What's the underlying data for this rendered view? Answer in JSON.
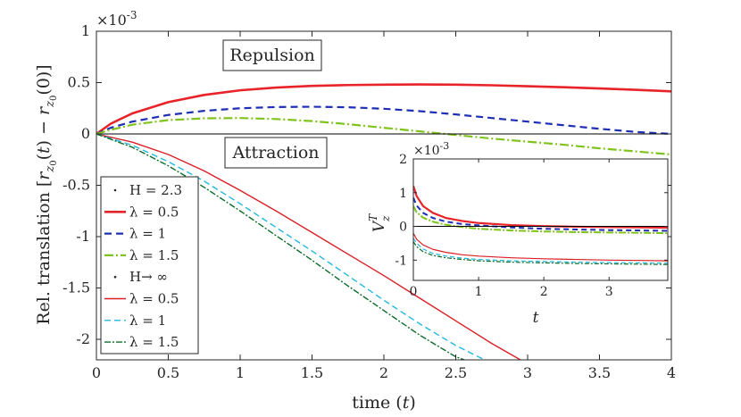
{
  "chart_data": [
    {
      "type": "line",
      "title": "",
      "xlabel": "time (t)",
      "ylabel": "Rel. translation [r_z0(t) − r_z0(0)]",
      "exponent_label": "×10^-3",
      "xlim": [
        0,
        4
      ],
      "ylim": [
        -2.2,
        1
      ],
      "xticks": [
        0,
        0.5,
        1,
        1.5,
        2,
        2.5,
        3,
        3.5,
        4
      ],
      "xtick_labels": [
        "0",
        "0.5",
        "1",
        "1.5",
        "2",
        "2.5",
        "3",
        "3.5",
        "4"
      ],
      "yticks": [
        1,
        0.5,
        0,
        -0.5,
        -1,
        -1.5,
        -2
      ],
      "ytick_labels": [
        "1",
        "0.5",
        "0",
        "-0.5",
        "-1",
        "-1.5",
        "-2"
      ],
      "annotations": [
        "Repulsion",
        "Attraction"
      ],
      "legend_location": "lower-left",
      "legend": [
        {
          "label": "H = 2.3",
          "style": "header"
        },
        {
          "label": "λ = 0.5",
          "series": 0
        },
        {
          "label": "λ = 1",
          "series": 1
        },
        {
          "label": "λ = 1.5",
          "series": 2
        },
        {
          "label": "H→ ∞",
          "style": "header"
        },
        {
          "label": "λ = 0.5",
          "series": 3
        },
        {
          "label": "λ = 1",
          "series": 4
        },
        {
          "label": "λ = 1.5",
          "series": 5
        }
      ],
      "series": [
        {
          "name": "H = 2.3, λ = 0.5",
          "color": "#e8242a",
          "dash": "",
          "width": 2.6,
          "x": [
            0,
            0.1,
            0.25,
            0.5,
            0.75,
            1,
            1.25,
            1.5,
            1.75,
            2,
            2.25,
            2.5,
            2.75,
            3,
            3.25,
            3.5,
            3.75,
            4
          ],
          "y": [
            0,
            0.1,
            0.2,
            0.31,
            0.38,
            0.425,
            0.452,
            0.468,
            0.476,
            0.48,
            0.482,
            0.48,
            0.474,
            0.465,
            0.455,
            0.443,
            0.43,
            0.415
          ]
        },
        {
          "name": "H = 2.3, λ = 1",
          "color": "#1f2fb5",
          "dash": "8,5",
          "width": 2.2,
          "x": [
            0,
            0.1,
            0.25,
            0.5,
            0.75,
            1,
            1.25,
            1.5,
            1.75,
            2,
            2.25,
            2.5,
            2.75,
            3,
            3.25,
            3.5,
            3.75,
            4
          ],
          "y": [
            0,
            0.06,
            0.12,
            0.185,
            0.225,
            0.25,
            0.262,
            0.265,
            0.26,
            0.245,
            0.222,
            0.19,
            0.155,
            0.12,
            0.085,
            0.05,
            0.02,
            0.0
          ]
        },
        {
          "name": "H = 2.3, λ = 1.5",
          "color": "#7fc31c",
          "dash": "10,3,2,3",
          "width": 2.2,
          "x": [
            0,
            0.1,
            0.25,
            0.5,
            0.75,
            1,
            1.25,
            1.5,
            1.75,
            2,
            2.25,
            2.5,
            2.75,
            3,
            3.25,
            3.5,
            3.75,
            4
          ],
          "y": [
            0,
            0.04,
            0.09,
            0.135,
            0.152,
            0.155,
            0.145,
            0.125,
            0.095,
            0.06,
            0.025,
            -0.01,
            -0.045,
            -0.075,
            -0.105,
            -0.14,
            -0.17,
            -0.2
          ]
        },
        {
          "name": "H→ ∞, λ = 0.5",
          "color": "#d91f26",
          "dash": "",
          "width": 1.4,
          "x": [
            0,
            0.25,
            0.5,
            0.75,
            1,
            1.25,
            1.5,
            1.75,
            2,
            2.25,
            2.5,
            2.75,
            2.95
          ],
          "y": [
            0,
            -0.08,
            -0.2,
            -0.36,
            -0.55,
            -0.75,
            -0.96,
            -1.17,
            -1.38,
            -1.6,
            -1.82,
            -2.04,
            -2.2
          ]
        },
        {
          "name": "H→ ∞, λ = 1",
          "color": "#22b8e0",
          "dash": "7,4",
          "width": 1.4,
          "x": [
            0,
            0.25,
            0.5,
            0.75,
            1,
            1.25,
            1.5,
            1.75,
            2,
            2.25,
            2.5,
            2.7
          ],
          "y": [
            0,
            -0.11,
            -0.27,
            -0.46,
            -0.68,
            -0.91,
            -1.14,
            -1.38,
            -1.62,
            -1.85,
            -2.06,
            -2.2
          ]
        },
        {
          "name": "H→ ∞, λ = 1.5",
          "color": "#0d6b2a",
          "dash": "7,2,2,2",
          "width": 1.4,
          "x": [
            0,
            0.25,
            0.5,
            0.75,
            1,
            1.25,
            1.5,
            1.75,
            2,
            2.25,
            2.5,
            2.56
          ],
          "y": [
            0,
            -0.13,
            -0.31,
            -0.52,
            -0.75,
            -0.99,
            -1.23,
            -1.48,
            -1.72,
            -1.96,
            -2.17,
            -2.2
          ]
        }
      ]
    },
    {
      "type": "line",
      "title": "",
      "xlabel": "t",
      "ylabel": "V_z^T",
      "exponent_label": "×10^-3",
      "xlim": [
        0,
        3.9
      ],
      "ylim": [
        -1.6,
        2
      ],
      "xticks": [
        0,
        1,
        2,
        3
      ],
      "xtick_labels": [
        "0",
        "1",
        "2",
        "3"
      ],
      "yticks": [
        2,
        1,
        0,
        -1
      ],
      "ytick_labels": [
        "2",
        "1",
        "0",
        "-1"
      ],
      "series": [
        {
          "name": "H = 2.3, λ = 0.5",
          "color": "#e8242a",
          "dash": "",
          "width": 2.2,
          "x": [
            0,
            0.05,
            0.15,
            0.3,
            0.5,
            0.75,
            1,
            1.5,
            2,
            2.5,
            3,
            3.5,
            3.9
          ],
          "y": [
            1.2,
            0.9,
            0.6,
            0.4,
            0.25,
            0.16,
            0.1,
            0.04,
            0.01,
            -0.01,
            -0.02,
            -0.03,
            -0.04
          ]
        },
        {
          "name": "H = 2.3, λ = 1",
          "color": "#1f2fb5",
          "dash": "6,4",
          "width": 2.0,
          "x": [
            0,
            0.05,
            0.15,
            0.3,
            0.5,
            0.75,
            1,
            1.5,
            2,
            2.5,
            3,
            3.5,
            3.9
          ],
          "y": [
            0.85,
            0.62,
            0.4,
            0.25,
            0.14,
            0.07,
            0.03,
            -0.03,
            -0.07,
            -0.09,
            -0.11,
            -0.12,
            -0.13
          ]
        },
        {
          "name": "H = 2.3, λ = 1.5",
          "color": "#7fc31c",
          "dash": "8,2,2,2",
          "width": 2.0,
          "x": [
            0,
            0.05,
            0.15,
            0.3,
            0.5,
            0.75,
            1,
            1.5,
            2,
            2.5,
            3,
            3.5,
            3.9
          ],
          "y": [
            0.6,
            0.42,
            0.26,
            0.14,
            0.05,
            -0.02,
            -0.07,
            -0.12,
            -0.15,
            -0.17,
            -0.18,
            -0.19,
            -0.2
          ]
        },
        {
          "name": "H→ ∞, λ = 0.5",
          "color": "#d91f26",
          "dash": "",
          "width": 1.2,
          "x": [
            0,
            0.05,
            0.15,
            0.3,
            0.5,
            0.75,
            1,
            1.5,
            2,
            2.5,
            3,
            3.5,
            3.9
          ],
          "y": [
            -0.2,
            -0.38,
            -0.55,
            -0.68,
            -0.77,
            -0.84,
            -0.88,
            -0.93,
            -0.96,
            -0.98,
            -1.0,
            -1.01,
            -1.02
          ]
        },
        {
          "name": "H→ ∞, λ = 1",
          "color": "#22b8e0",
          "dash": "5,3",
          "width": 1.2,
          "x": [
            0,
            0.05,
            0.15,
            0.3,
            0.5,
            0.75,
            1,
            1.5,
            2,
            2.5,
            3,
            3.5,
            3.9
          ],
          "y": [
            -0.35,
            -0.5,
            -0.67,
            -0.8,
            -0.88,
            -0.94,
            -0.98,
            -1.02,
            -1.04,
            -1.06,
            -1.07,
            -1.08,
            -1.09
          ]
        },
        {
          "name": "H→ ∞, λ = 1.5",
          "color": "#0d6b2a",
          "dash": "5,2,2,2",
          "width": 1.2,
          "x": [
            0,
            0.05,
            0.15,
            0.3,
            0.5,
            0.75,
            1,
            1.5,
            2,
            2.5,
            3,
            3.5,
            3.9
          ],
          "y": [
            -0.45,
            -0.6,
            -0.75,
            -0.86,
            -0.93,
            -0.98,
            -1.02,
            -1.06,
            -1.08,
            -1.1,
            -1.11,
            -1.12,
            -1.13
          ]
        }
      ]
    }
  ]
}
